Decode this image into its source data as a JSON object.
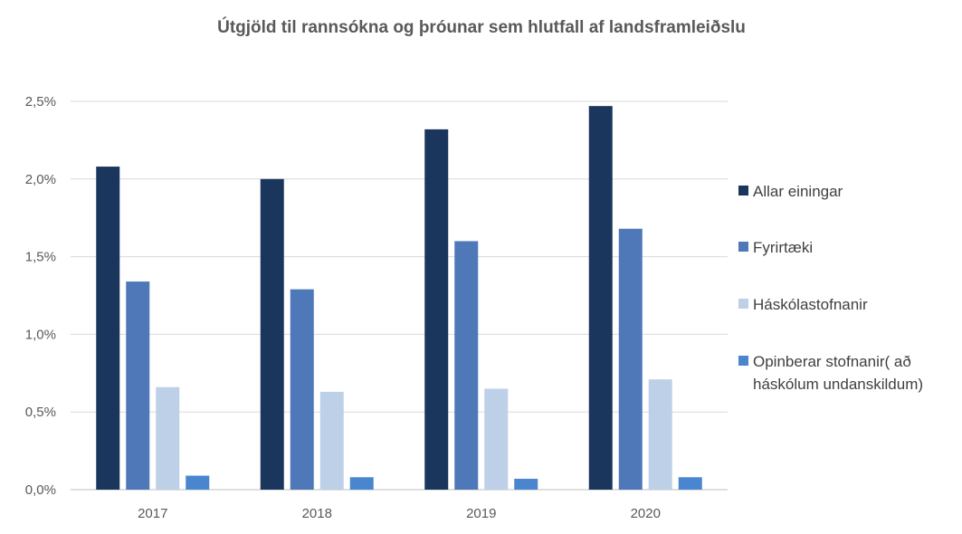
{
  "chart_data": {
    "type": "bar",
    "title": "Útgjöld til rannsókna  og þróunar sem hlutfall af landsframleiðslu",
    "xlabel": "",
    "ylabel": "",
    "categories": [
      "2017",
      "2018",
      "2019",
      "2020"
    ],
    "ylim": [
      0,
      2.5
    ],
    "yticks": [
      "0,0%",
      "0,5%",
      "1,0%",
      "1,5%",
      "2,0%",
      "2,5%"
    ],
    "grid": true,
    "legend_position": "right",
    "series": [
      {
        "name": "Allar einingar",
        "color": "#1b365d",
        "values": [
          2.08,
          2.0,
          2.32,
          2.47
        ]
      },
      {
        "name": "Fyrirtæki",
        "color": "#4f78b8",
        "values": [
          1.34,
          1.29,
          1.6,
          1.68
        ]
      },
      {
        "name": "Háskólastofnanir",
        "color": "#bdd0e7",
        "values": [
          0.66,
          0.63,
          0.65,
          0.71
        ]
      },
      {
        "name": "Opinberar stofnanir( að",
        "name_line2": "háskólum undanskildum)",
        "color": "#4a86d0",
        "values": [
          0.09,
          0.08,
          0.07,
          0.08
        ]
      }
    ]
  }
}
